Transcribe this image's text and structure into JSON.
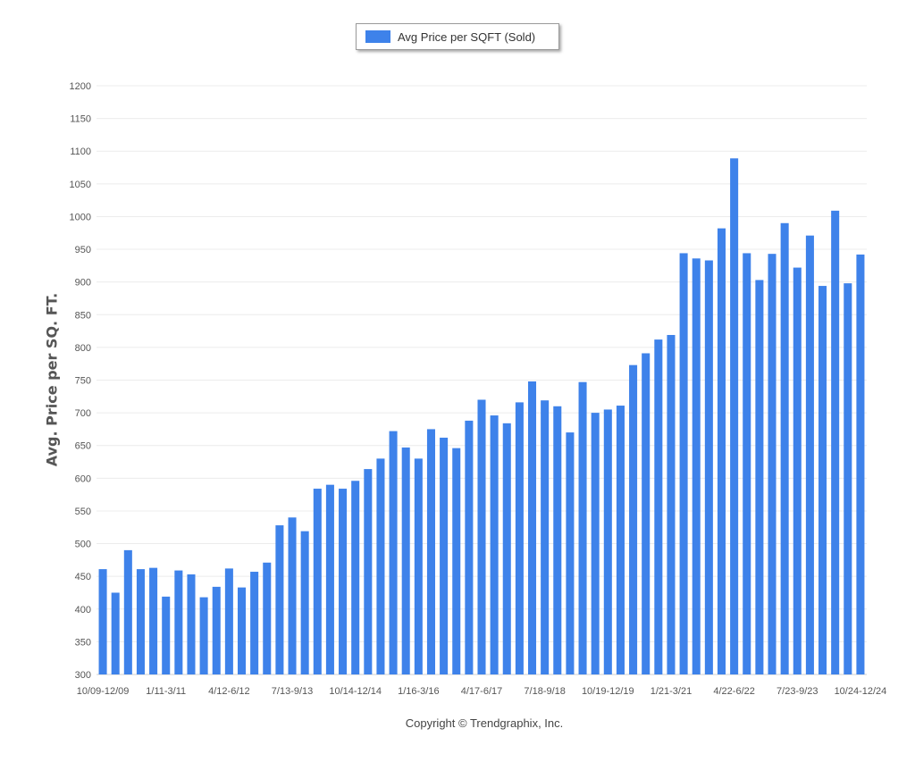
{
  "legend": {
    "label": "Avg Price per SQFT (Sold)"
  },
  "footer": {
    "copyright": "Copyright © Trendgraphix, Inc."
  },
  "chart_data": {
    "type": "bar",
    "title": "",
    "xlabel": "",
    "ylabel": "Avg. Price per SQ. FT.",
    "ylim": [
      300,
      1200
    ],
    "yticks": [
      300,
      350,
      400,
      450,
      500,
      550,
      600,
      650,
      700,
      750,
      800,
      850,
      900,
      950,
      1000,
      1050,
      1100,
      1150,
      1200
    ],
    "grid": true,
    "legend_position": "top-center",
    "bar_color": "#3e82ea",
    "x_tick_labels": [
      {
        "index": 0,
        "label": "10/09-12/09"
      },
      {
        "index": 5,
        "label": "1/11-3/11"
      },
      {
        "index": 10,
        "label": "4/12-6/12"
      },
      {
        "index": 15,
        "label": "7/13-9/13"
      },
      {
        "index": 20,
        "label": "10/14-12/14"
      },
      {
        "index": 25,
        "label": "1/16-3/16"
      },
      {
        "index": 30,
        "label": "4/17-6/17"
      },
      {
        "index": 35,
        "label": "7/18-9/18"
      },
      {
        "index": 40,
        "label": "10/19-12/19"
      },
      {
        "index": 45,
        "label": "1/21-3/21"
      },
      {
        "index": 50,
        "label": "4/22-6/22"
      },
      {
        "index": 55,
        "label": "7/23-9/23"
      },
      {
        "index": 60,
        "label": "10/24-12/24"
      }
    ],
    "series": [
      {
        "name": "Avg Price per SQFT (Sold)",
        "values": [
          461,
          425,
          490,
          461,
          463,
          419,
          459,
          453,
          418,
          434,
          462,
          433,
          457,
          471,
          528,
          540,
          519,
          584,
          590,
          584,
          596,
          614,
          630,
          672,
          647,
          630,
          675,
          662,
          646,
          688,
          720,
          696,
          684,
          716,
          748,
          719,
          710,
          670,
          747,
          700,
          705,
          711,
          773,
          791,
          812,
          819,
          944,
          936,
          933,
          982,
          1089,
          944,
          903,
          943,
          990,
          922,
          971,
          894,
          1009,
          898,
          942
        ]
      }
    ]
  }
}
